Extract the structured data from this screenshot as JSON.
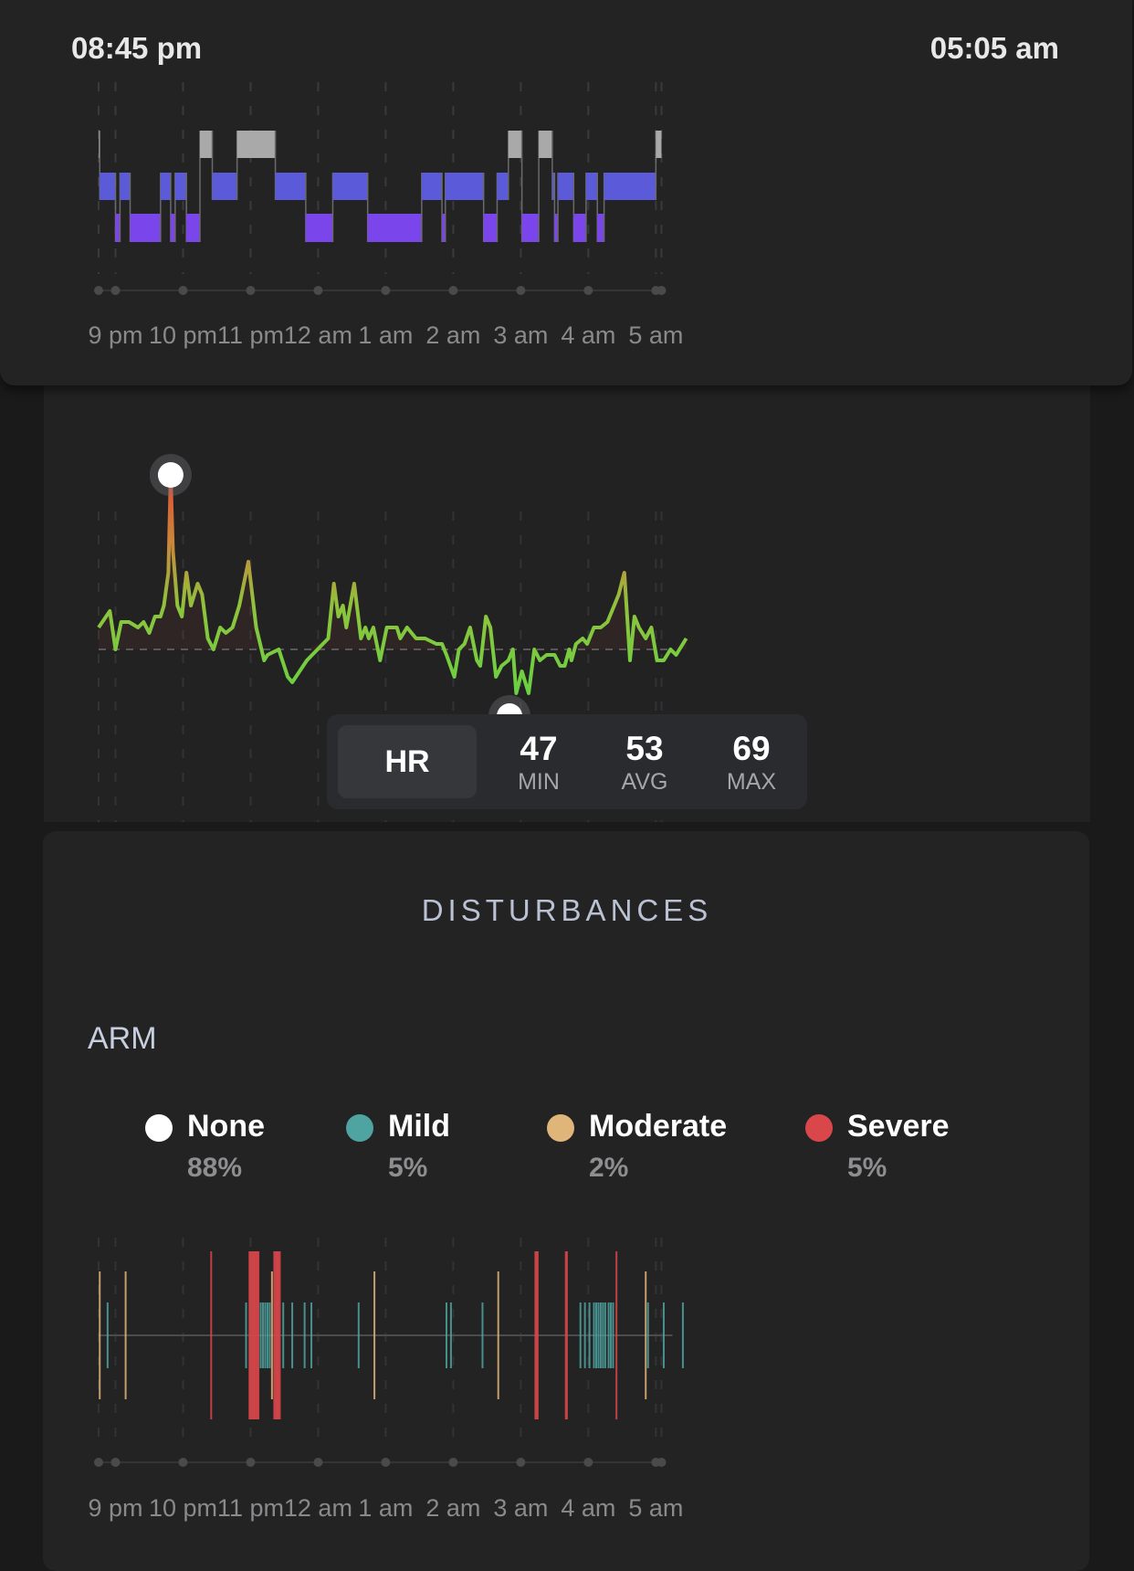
{
  "header": {
    "start_time": "08:45 pm",
    "end_time": "05:05 am"
  },
  "axis_ticks": [
    "9 pm",
    "10 pm",
    "11 pm",
    "12 am",
    "1 am",
    "2 am",
    "3 am",
    "4 am",
    "5 am"
  ],
  "colors": {
    "awake": "#a9a9a9",
    "light": "#5b5ad8",
    "deep": "#7a45ea",
    "hr_low": "#6fd14a",
    "hr_high": "#e0513c",
    "none": "#ffffff",
    "mild": "#4fa3a0",
    "moderate": "#dfb57a",
    "severe": "#d9474b"
  },
  "hr_stats": {
    "title": "HR",
    "min": "47",
    "min_label": "MIN",
    "avg": "53",
    "avg_label": "AVG",
    "max": "69",
    "max_label": "MAX"
  },
  "disturbances": {
    "title": "DISTURBANCES",
    "section": "ARM",
    "legend": [
      {
        "name": "None",
        "pct": "88%",
        "color": "#ffffff"
      },
      {
        "name": "Mild",
        "pct": "5%",
        "color": "#4fa3a0"
      },
      {
        "name": "Moderate",
        "pct": "2%",
        "color": "#dfb57a"
      },
      {
        "name": "Severe",
        "pct": "5%",
        "color": "#d9474b"
      }
    ]
  },
  "chart_data": [
    {
      "type": "step",
      "levels": [
        "awake",
        "light",
        "deep"
      ],
      "x_unit": "minutes after 08:45 pm",
      "xlim": [
        0,
        500
      ],
      "segments": [
        {
          "start": 0,
          "end": 1,
          "stage": "awake"
        },
        {
          "start": 1,
          "end": 15,
          "stage": "light"
        },
        {
          "start": 15,
          "end": 19,
          "stage": "deep"
        },
        {
          "start": 19,
          "end": 28,
          "stage": "light"
        },
        {
          "start": 28,
          "end": 55,
          "stage": "deep"
        },
        {
          "start": 55,
          "end": 64,
          "stage": "light"
        },
        {
          "start": 64,
          "end": 68,
          "stage": "deep"
        },
        {
          "start": 68,
          "end": 78,
          "stage": "light"
        },
        {
          "start": 78,
          "end": 90,
          "stage": "deep"
        },
        {
          "start": 90,
          "end": 101,
          "stage": "awake"
        },
        {
          "start": 101,
          "end": 123,
          "stage": "light"
        },
        {
          "start": 123,
          "end": 157,
          "stage": "awake"
        },
        {
          "start": 157,
          "end": 184,
          "stage": "light"
        },
        {
          "start": 184,
          "end": 208,
          "stage": "deep"
        },
        {
          "start": 208,
          "end": 239,
          "stage": "light"
        },
        {
          "start": 239,
          "end": 287,
          "stage": "deep"
        },
        {
          "start": 287,
          "end": 305,
          "stage": "light"
        },
        {
          "start": 305,
          "end": 308,
          "stage": "deep"
        },
        {
          "start": 308,
          "end": 342,
          "stage": "light"
        },
        {
          "start": 342,
          "end": 354,
          "stage": "deep"
        },
        {
          "start": 354,
          "end": 364,
          "stage": "light"
        },
        {
          "start": 364,
          "end": 376,
          "stage": "awake"
        },
        {
          "start": 376,
          "end": 391,
          "stage": "deep"
        },
        {
          "start": 391,
          "end": 403,
          "stage": "awake"
        },
        {
          "start": 403,
          "end": 405,
          "stage": "light"
        },
        {
          "start": 405,
          "end": 408,
          "stage": "deep"
        },
        {
          "start": 408,
          "end": 422,
          "stage": "light"
        },
        {
          "start": 422,
          "end": 433,
          "stage": "deep"
        },
        {
          "start": 433,
          "end": 443,
          "stage": "light"
        },
        {
          "start": 443,
          "end": 449,
          "stage": "deep"
        },
        {
          "start": 449,
          "end": 495,
          "stage": "light"
        },
        {
          "start": 495,
          "end": 500,
          "stage": "awake"
        }
      ]
    },
    {
      "type": "line",
      "series_name": "HR",
      "x_unit": "minutes after 08:45 pm",
      "xlim": [
        0,
        500
      ],
      "ylim": [
        40,
        80
      ],
      "average": 53,
      "points": [
        [
          0,
          55
        ],
        [
          10,
          56.5
        ],
        [
          15,
          53
        ],
        [
          20,
          55.5
        ],
        [
          27,
          55.5
        ],
        [
          35,
          55
        ],
        [
          40,
          55.5
        ],
        [
          45,
          54.5
        ],
        [
          50,
          56
        ],
        [
          55,
          56
        ],
        [
          58,
          57
        ],
        [
          62,
          60
        ],
        [
          64,
          69
        ],
        [
          66,
          62
        ],
        [
          70,
          57
        ],
        [
          74,
          56
        ],
        [
          78,
          60
        ],
        [
          82,
          57
        ],
        [
          85,
          58
        ],
        [
          88,
          59
        ],
        [
          92,
          58
        ],
        [
          97,
          54
        ],
        [
          102,
          53
        ],
        [
          108,
          55
        ],
        [
          113,
          54.5
        ],
        [
          119,
          55
        ],
        [
          125,
          57
        ],
        [
          133,
          61
        ],
        [
          140,
          55
        ],
        [
          147,
          52
        ],
        [
          150,
          52.5
        ],
        [
          160,
          53
        ],
        [
          168,
          50.5
        ],
        [
          172,
          50
        ],
        [
          185,
          52
        ],
        [
          204,
          54
        ],
        [
          209,
          59
        ],
        [
          213,
          56
        ],
        [
          217,
          57
        ],
        [
          220,
          55
        ],
        [
          227,
          59
        ],
        [
          233,
          54
        ],
        [
          237,
          55
        ],
        [
          240,
          54
        ],
        [
          244,
          55
        ],
        [
          250,
          52
        ],
        [
          256,
          55
        ],
        [
          265,
          55
        ],
        [
          268,
          54
        ],
        [
          274,
          55
        ],
        [
          282,
          54
        ],
        [
          290,
          54
        ],
        [
          300,
          53.5
        ],
        [
          305,
          53.5
        ],
        [
          309,
          52.5
        ],
        [
          316,
          50.5
        ],
        [
          320,
          53
        ],
        [
          325,
          53.5
        ],
        [
          330,
          55
        ],
        [
          336,
          52
        ],
        [
          339,
          51.5
        ],
        [
          344,
          56
        ],
        [
          348,
          55
        ],
        [
          353,
          50.5
        ],
        [
          358,
          51.5
        ],
        [
          364,
          52
        ],
        [
          368,
          53
        ],
        [
          371,
          49
        ],
        [
          376,
          51
        ],
        [
          382,
          49
        ],
        [
          387,
          53
        ],
        [
          392,
          52
        ],
        [
          398,
          52.5
        ],
        [
          405,
          52.5
        ],
        [
          410,
          51.5
        ],
        [
          414,
          51.5
        ],
        [
          418,
          53
        ],
        [
          420,
          52
        ],
        [
          424,
          53.5
        ],
        [
          430,
          54
        ],
        [
          434,
          53.5
        ],
        [
          440,
          55
        ],
        [
          446,
          55
        ],
        [
          452,
          55.5
        ],
        [
          458,
          57
        ],
        [
          462,
          58
        ],
        [
          467,
          60
        ],
        [
          472,
          52
        ],
        [
          476,
          56
        ],
        [
          480,
          55
        ],
        [
          486,
          54
        ],
        [
          491,
          55
        ],
        [
          496,
          52
        ],
        [
          502,
          52
        ],
        [
          508,
          53
        ],
        [
          513,
          52.5
        ],
        [
          522,
          54
        ]
      ],
      "min_point": [
        365,
        47
      ],
      "max_point": [
        64,
        69
      ]
    },
    {
      "type": "event",
      "series_name": "ARM",
      "x_unit": "minutes after 08:45 pm",
      "xlim": [
        0,
        500
      ],
      "events": [
        {
          "t": 1,
          "s": "moderate"
        },
        {
          "t": 8,
          "s": "mild"
        },
        {
          "t": 24,
          "s": "moderate"
        },
        {
          "t": 100,
          "s": "severe"
        },
        {
          "t": 131,
          "s": "mild"
        },
        {
          "t": 134,
          "s": "severe"
        },
        {
          "t": 135,
          "s": "severe"
        },
        {
          "t": 136,
          "s": "severe"
        },
        {
          "t": 137,
          "s": "severe"
        },
        {
          "t": 138,
          "s": "severe"
        },
        {
          "t": 139,
          "s": "severe"
        },
        {
          "t": 140,
          "s": "severe"
        },
        {
          "t": 141,
          "s": "severe"
        },
        {
          "t": 142,
          "s": "severe"
        },
        {
          "t": 144,
          "s": "mild"
        },
        {
          "t": 146,
          "s": "mild"
        },
        {
          "t": 148,
          "s": "mild"
        },
        {
          "t": 150,
          "s": "mild"
        },
        {
          "t": 152,
          "s": "mild"
        },
        {
          "t": 154,
          "s": "moderate"
        },
        {
          "t": 156,
          "s": "severe"
        },
        {
          "t": 157,
          "s": "severe"
        },
        {
          "t": 158,
          "s": "severe"
        },
        {
          "t": 159,
          "s": "severe"
        },
        {
          "t": 160,
          "s": "severe"
        },
        {
          "t": 161,
          "s": "severe"
        },
        {
          "t": 164,
          "s": "mild"
        },
        {
          "t": 172,
          "s": "mild"
        },
        {
          "t": 183,
          "s": "mild"
        },
        {
          "t": 189,
          "s": "mild"
        },
        {
          "t": 231,
          "s": "mild"
        },
        {
          "t": 245,
          "s": "moderate"
        },
        {
          "t": 309,
          "s": "mild"
        },
        {
          "t": 313,
          "s": "mild"
        },
        {
          "t": 341,
          "s": "mild"
        },
        {
          "t": 355,
          "s": "moderate"
        },
        {
          "t": 388,
          "s": "severe"
        },
        {
          "t": 389,
          "s": "severe"
        },
        {
          "t": 390,
          "s": "severe"
        },
        {
          "t": 415,
          "s": "severe"
        },
        {
          "t": 416,
          "s": "severe"
        },
        {
          "t": 428,
          "s": "mild"
        },
        {
          "t": 432,
          "s": "mild"
        },
        {
          "t": 436,
          "s": "mild"
        },
        {
          "t": 440,
          "s": "mild"
        },
        {
          "t": 442,
          "s": "mild"
        },
        {
          "t": 444,
          "s": "mild"
        },
        {
          "t": 446,
          "s": "mild"
        },
        {
          "t": 448,
          "s": "mild"
        },
        {
          "t": 450,
          "s": "mild"
        },
        {
          "t": 453,
          "s": "mild"
        },
        {
          "t": 455,
          "s": "mild"
        },
        {
          "t": 457,
          "s": "mild"
        },
        {
          "t": 460,
          "s": "severe"
        },
        {
          "t": 486,
          "s": "moderate"
        },
        {
          "t": 488,
          "s": "mild"
        },
        {
          "t": 502,
          "s": "mild"
        },
        {
          "t": 519,
          "s": "mild"
        }
      ]
    }
  ]
}
